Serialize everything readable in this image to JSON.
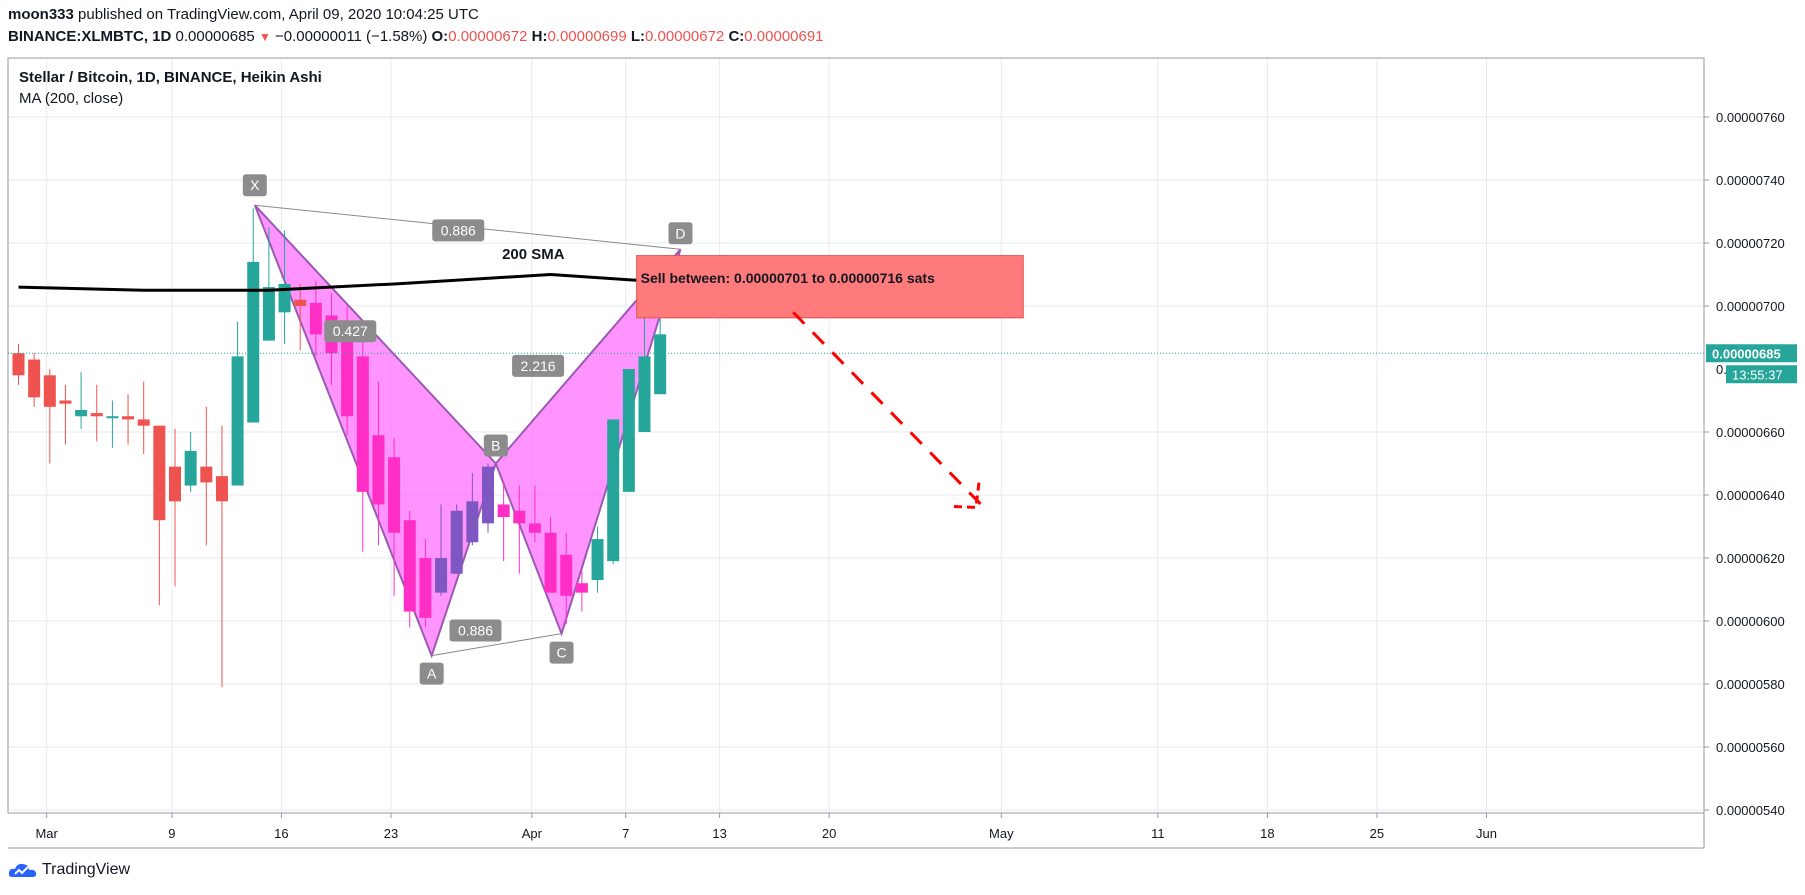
{
  "header": {
    "author": "moon333",
    "published_text": "published on TradingView.com, April 09, 2020 10:04:25 UTC",
    "symbol_interval": "BINANCE:XLMBTC, 1D",
    "last_price": "0.00000685",
    "change": "−0.00000011 (−1.58%)",
    "o_label": "O:",
    "o_value": "0.00000672",
    "h_label": "H:",
    "h_value": "0.00000699",
    "l_label": "L:",
    "l_value": "0.00000672",
    "c_label": "C:",
    "c_value": "0.00000691"
  },
  "legend": {
    "title": "Stellar / Bitcoin, 1D, BINANCE, Heikin Ashi",
    "indicator": "MA (200, close)"
  },
  "price_axis": {
    "ticks": [
      "0.00000760",
      "0.00000740",
      "0.00000720",
      "0.00000700",
      "0.00000660",
      "0.00000640",
      "0.00000620",
      "0.00000600",
      "0.00000580",
      "0.00000560",
      "0.00000540"
    ],
    "current_price_label": "0.00000685",
    "countdown_label": "13:55:37",
    "partial_tick_label": "0."
  },
  "time_axis": {
    "ticks": [
      "Mar",
      "9",
      "16",
      "23",
      "Apr",
      "7",
      "13",
      "20",
      "May",
      "11",
      "18",
      "25",
      "Jun"
    ]
  },
  "footer": {
    "logo_text": "TradingView"
  },
  "colors": {
    "up": "#26a69a",
    "down": "#ef5350",
    "pattern_up": "#ff2ec4",
    "pattern_dn": "#7e57c2",
    "pattern_fill": "#ff66ff",
    "sell_box": "#ff7a7a",
    "arrow": "#ff0000",
    "ma": "#000000"
  },
  "chart_data": {
    "type": "candlestick",
    "title": "Stellar / Bitcoin, 1D, BINANCE, Heikin Ashi",
    "y_range": [
      5.35e-06,
      7.82e-06
    ],
    "candles": [
      {
        "day": 0,
        "open": 6.85e-06,
        "high": 6.88e-06,
        "low": 6.75e-06,
        "close": 6.78e-06
      },
      {
        "day": 1,
        "open": 6.83e-06,
        "high": 6.85e-06,
        "low": 6.68e-06,
        "close": 6.71e-06
      },
      {
        "day": 2,
        "open": 6.78e-06,
        "high": 6.8e-06,
        "low": 6.5e-06,
        "close": 6.68e-06
      },
      {
        "day": 3,
        "open": 6.7e-06,
        "high": 6.75e-06,
        "low": 6.56e-06,
        "close": 6.69e-06
      },
      {
        "day": 4,
        "open": 6.65e-06,
        "high": 6.79e-06,
        "low": 6.61e-06,
        "close": 6.67e-06
      },
      {
        "day": 5,
        "open": 6.66e-06,
        "high": 6.75e-06,
        "low": 6.57e-06,
        "close": 6.65e-06
      },
      {
        "day": 6,
        "open": 6.65e-06,
        "high": 6.7e-06,
        "low": 6.55e-06,
        "close": 6.65e-06
      },
      {
        "day": 7,
        "open": 6.65e-06,
        "high": 6.72e-06,
        "low": 6.56e-06,
        "close": 6.64e-06
      },
      {
        "day": 8,
        "open": 6.64e-06,
        "high": 6.76e-06,
        "low": 6.53e-06,
        "close": 6.62e-06
      },
      {
        "day": 9,
        "open": 6.62e-06,
        "high": 6.62e-06,
        "low": 6.05e-06,
        "close": 6.32e-06
      },
      {
        "day": 10,
        "open": 6.49e-06,
        "high": 6.61e-06,
        "low": 6.11e-06,
        "close": 6.38e-06
      },
      {
        "day": 11,
        "open": 6.43e-06,
        "high": 6.6e-06,
        "low": 6.41e-06,
        "close": 6.54e-06
      },
      {
        "day": 12,
        "open": 6.49e-06,
        "high": 6.68e-06,
        "low": 6.24e-06,
        "close": 6.44e-06
      },
      {
        "day": 13,
        "open": 6.46e-06,
        "high": 6.62e-06,
        "low": 5.79e-06,
        "close": 6.38e-06
      },
      {
        "day": 14,
        "open": 6.43e-06,
        "high": 6.95e-06,
        "low": 6.43e-06,
        "close": 6.84e-06
      },
      {
        "day": 15,
        "open": 6.63e-06,
        "high": 7.31e-06,
        "low": 6.63e-06,
        "close": 7.14e-06
      },
      {
        "day": 16,
        "open": 6.89e-06,
        "high": 7.25e-06,
        "low": 6.89e-06,
        "close": 7.06e-06
      },
      {
        "day": 17,
        "open": 6.98e-06,
        "high": 7.24e-06,
        "low": 6.88e-06,
        "close": 7.07e-06
      },
      {
        "day": 18,
        "open": 7.02e-06,
        "high": 7.07e-06,
        "low": 6.86e-06,
        "close": 7e-06
      },
      {
        "day": 19,
        "open": 7.01e-06,
        "high": 7.08e-06,
        "low": 6.84e-06,
        "close": 6.91e-06
      },
      {
        "day": 20,
        "open": 6.97e-06,
        "high": 7.04e-06,
        "low": 6.75e-06,
        "close": 6.85e-06
      },
      {
        "day": 21,
        "open": 6.9e-06,
        "high": 7e-06,
        "low": 6.59e-06,
        "close": 6.65e-06
      },
      {
        "day": 22,
        "open": 6.84e-06,
        "high": 6.95e-06,
        "low": 6.22e-06,
        "close": 6.41e-06
      },
      {
        "day": 23,
        "open": 6.59e-06,
        "high": 6.76e-06,
        "low": 6.24e-06,
        "close": 6.37e-06
      },
      {
        "day": 24,
        "open": 6.52e-06,
        "high": 6.58e-06,
        "low": 6.08e-06,
        "close": 6.28e-06
      },
      {
        "day": 25,
        "open": 6.32e-06,
        "high": 6.35e-06,
        "low": 5.98e-06,
        "close": 6.03e-06
      },
      {
        "day": 26,
        "open": 6.2e-06,
        "high": 6.26e-06,
        "low": 5.98e-06,
        "close": 6.01e-06
      },
      {
        "day": 27,
        "open": 6.09e-06,
        "high": 6.37e-06,
        "low": 6.08e-06,
        "close": 6.2e-06
      },
      {
        "day": 28,
        "open": 6.15e-06,
        "high": 6.37e-06,
        "low": 6.15e-06,
        "close": 6.35e-06
      },
      {
        "day": 29,
        "open": 6.25e-06,
        "high": 6.47e-06,
        "low": 6.24e-06,
        "close": 6.38e-06
      },
      {
        "day": 30,
        "open": 6.31e-06,
        "high": 6.5e-06,
        "low": 6.28e-06,
        "close": 6.49e-06
      },
      {
        "day": 31,
        "open": 6.37e-06,
        "high": 6.44e-06,
        "low": 6.19e-06,
        "close": 6.33e-06
      },
      {
        "day": 32,
        "open": 6.35e-06,
        "high": 6.43e-06,
        "low": 6.15e-06,
        "close": 6.31e-06
      },
      {
        "day": 33,
        "open": 6.31e-06,
        "high": 6.43e-06,
        "low": 6.25e-06,
        "close": 6.28e-06
      },
      {
        "day": 34,
        "open": 6.28e-06,
        "high": 6.33e-06,
        "low": 6.1e-06,
        "close": 6.09e-06
      },
      {
        "day": 35,
        "open": 6.21e-06,
        "high": 6.28e-06,
        "low": 5.99e-06,
        "close": 6.08e-06
      },
      {
        "day": 36,
        "open": 6.12e-06,
        "high": 6.16e-06,
        "low": 6.03e-06,
        "close": 6.09e-06
      },
      {
        "day": 37,
        "open": 6.13e-06,
        "high": 6.3e-06,
        "low": 6.09e-06,
        "close": 6.26e-06
      },
      {
        "day": 38,
        "open": 6.19e-06,
        "high": 6.64e-06,
        "low": 6.18e-06,
        "close": 6.64e-06
      },
      {
        "day": 39,
        "open": 6.41e-06,
        "high": 6.8e-06,
        "low": 6.41e-06,
        "close": 6.8e-06
      },
      {
        "day": 40,
        "open": 6.6e-06,
        "high": 6.99e-06,
        "low": 6.6e-06,
        "close": 6.84e-06
      },
      {
        "day": 41,
        "open": 6.72e-06,
        "high": 6.99e-06,
        "low": 6.72e-06,
        "close": 6.91e-06
      }
    ],
    "ma200": [
      {
        "day": 0,
        "value": 7.06e-06
      },
      {
        "day": 8,
        "value": 7.05e-06
      },
      {
        "day": 16,
        "value": 7.05e-06
      },
      {
        "day": 24,
        "value": 7.07e-06
      },
      {
        "day": 34,
        "value": 7.1e-06
      },
      {
        "day": 40,
        "value": 7.08e-06
      },
      {
        "day": 41,
        "value": 7.08e-06
      }
    ],
    "ma_label": "200 SMA",
    "harmonic_pattern": {
      "points": [
        {
          "name": "X",
          "day": 15.1,
          "price": 7.32e-06
        },
        {
          "name": "A",
          "day": 26.4,
          "price": 5.89e-06
        },
        {
          "name": "B",
          "day": 30.5,
          "price": 6.5e-06
        },
        {
          "name": "C",
          "day": 34.7,
          "price": 5.96e-06
        },
        {
          "name": "D",
          "day": 42.3,
          "price": 7.18e-06
        }
      ],
      "ratios": [
        {
          "value": "0.886",
          "between": "XD"
        },
        {
          "value": "0.427",
          "between": "XB"
        },
        {
          "value": "2.216",
          "between": "BD"
        },
        {
          "value": "0.886",
          "between": "AC"
        }
      ]
    },
    "sell_zone": {
      "from": 7.01e-06,
      "to": 7.16e-06,
      "start_day": 39.5,
      "end_day": 64.2,
      "text": "Sell between: 0.00000701 to 0.00000716 sats"
    },
    "projection_arrow": {
      "from_day": 49.5,
      "from_price": 6.98e-06,
      "to_day": 61.5,
      "to_price": 6.37e-06
    },
    "current_price": 6.85e-06,
    "x_ticks_days": [
      1.8,
      9.8,
      16.8,
      23.8,
      32.8,
      38.8,
      44.8,
      51.8,
      62.8,
      72.8,
      79.8,
      86.8,
      93.8
    ]
  }
}
